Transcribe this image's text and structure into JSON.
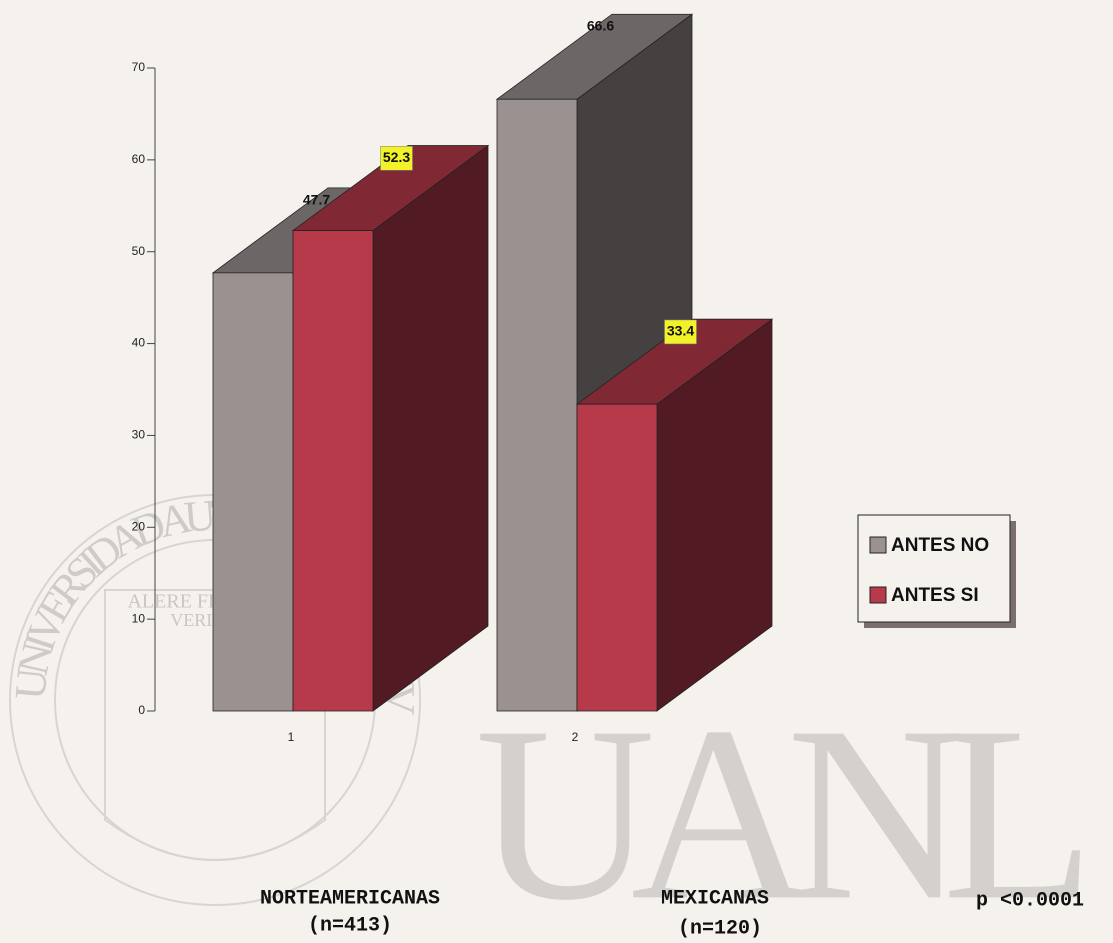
{
  "chart_data": {
    "type": "bar3d",
    "categories": [
      "1",
      "2"
    ],
    "series": [
      {
        "name": "ANTES NO",
        "color": "#9b9191",
        "values": [
          47.7,
          66.6
        ]
      },
      {
        "name": "ANTES SI",
        "color": "#b73a4b",
        "values": [
          52.3,
          33.4
        ]
      }
    ],
    "ylim": [
      0,
      70
    ],
    "yticks": [
      0,
      10,
      20,
      30,
      40,
      50,
      60,
      70
    ],
    "legend": "right",
    "annotations": [
      "NORTEAMERICANAS",
      "(n=413)",
      "MEXICANAS",
      "(n=120)",
      "p <0.0001"
    ]
  },
  "watermark": {
    "seal": "UNIVERSIDAD AUTONOMA DE NUEVO LEON",
    "motto": [
      "ALERE FLAMMAM",
      "VERITATIS"
    ],
    "logo": "UANL"
  }
}
